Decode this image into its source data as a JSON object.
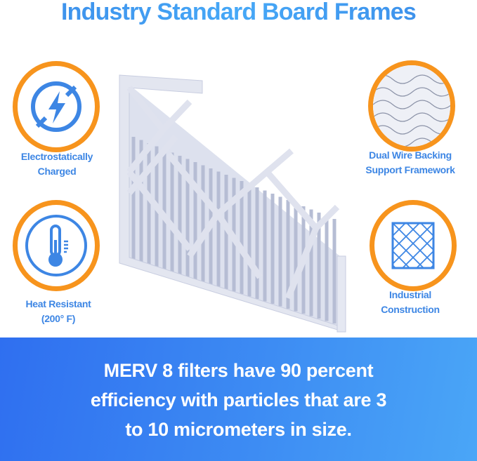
{
  "title": "Industry Standard Board Frames",
  "features": [
    {
      "icon": "lightning-icon",
      "lines": [
        "Electrostatically",
        "Charged"
      ]
    },
    {
      "icon": "thermometer-icon",
      "lines": [
        "Heat Resistant",
        "(200° F)"
      ]
    },
    {
      "icon": "wire-mesh-icon",
      "lines": [
        "Dual Wire Backing",
        "Support Framework"
      ]
    },
    {
      "icon": "grid-frame-icon",
      "lines": [
        "Industrial",
        "Construction"
      ]
    }
  ],
  "banner": {
    "lines": [
      "MERV 8 filters have 90 percent",
      "efficiency with particles that are 3",
      "to 10 micrometers in size."
    ]
  },
  "colors": {
    "accent_blue": "#3d86e4",
    "ring_orange": "#f7941d",
    "banner_start": "#2f6ff0",
    "banner_end": "#4aa6f7"
  }
}
